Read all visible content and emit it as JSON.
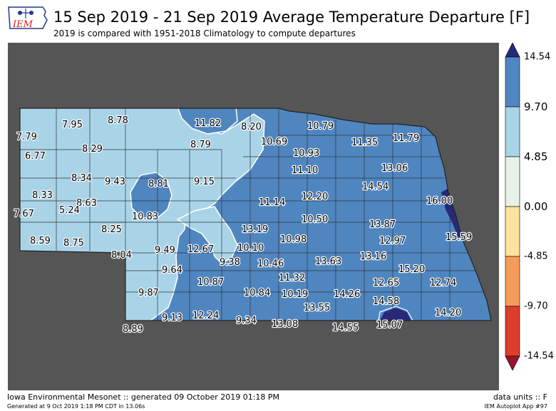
{
  "header": {
    "logo_text": "IEM",
    "title": "15 Sep 2019 - 21 Sep 2019 Average Temperature Departure [F]",
    "subtitle": "2019 is compared with 1951-2018 Climatology to compute departures"
  },
  "legend": {
    "ticks": [
      "14.54",
      "9.70",
      "4.85",
      "0.00",
      "-4.85",
      "-9.70",
      "-14.54"
    ],
    "colors": [
      "#28287a",
      "#4f86c0",
      "#a9d4e8",
      "#e7f3e6",
      "#fde39d",
      "#f59b5a",
      "#dd3d2d",
      "#9c1230"
    ]
  },
  "map": {
    "values": [
      {
        "label": "7.79"
      },
      {
        "label": "7.95"
      },
      {
        "label": "8.78"
      },
      {
        "label": "11.82"
      },
      {
        "label": "8.20"
      },
      {
        "label": "10.79"
      },
      {
        "label": "6.77"
      },
      {
        "label": "8.29"
      },
      {
        "label": "8.79"
      },
      {
        "label": "10.69"
      },
      {
        "label": "11.35"
      },
      {
        "label": "11.79"
      },
      {
        "label": "10.93"
      },
      {
        "label": "13.06"
      },
      {
        "label": "8.34"
      },
      {
        "label": "9.43"
      },
      {
        "label": "8.81"
      },
      {
        "label": "9.15"
      },
      {
        "label": "11.10"
      },
      {
        "label": "8.33"
      },
      {
        "label": "8.63"
      },
      {
        "label": "11.14"
      },
      {
        "label": "12.20"
      },
      {
        "label": "14.54"
      },
      {
        "label": "16.00"
      },
      {
        "label": "7.67"
      },
      {
        "label": "5.24"
      },
      {
        "label": "10.83"
      },
      {
        "label": "10.50"
      },
      {
        "label": "8.25"
      },
      {
        "label": "13.19"
      },
      {
        "label": "13.87"
      },
      {
        "label": "8.59"
      },
      {
        "label": "8.75"
      },
      {
        "label": "15.59"
      },
      {
        "label": "10.98"
      },
      {
        "label": "12.97"
      },
      {
        "label": "9.49"
      },
      {
        "label": "12.67"
      },
      {
        "label": "10.10"
      },
      {
        "label": "8.04"
      },
      {
        "label": "9.38"
      },
      {
        "label": "10.46"
      },
      {
        "label": "13.63"
      },
      {
        "label": "13.16"
      },
      {
        "label": "9.64"
      },
      {
        "label": "15.20"
      },
      {
        "label": "11.32"
      },
      {
        "label": "10.87"
      },
      {
        "label": "12.65"
      },
      {
        "label": "12.74"
      },
      {
        "label": "9.87"
      },
      {
        "label": "10.84"
      },
      {
        "label": "10.19"
      },
      {
        "label": "14.26"
      },
      {
        "label": "14.58"
      },
      {
        "label": "13.55"
      },
      {
        "label": "14.20"
      },
      {
        "label": "9.13"
      },
      {
        "label": "12.24"
      },
      {
        "label": "9.34"
      },
      {
        "label": "13.08"
      },
      {
        "label": "14.55"
      },
      {
        "label": "15.07"
      },
      {
        "label": "8.89"
      }
    ]
  },
  "footer": {
    "left": "Iowa Environmental Mesonet :: generated 09 October 2019 01:18 PM",
    "left_small": "Generated at 9 Oct 2019 1:18 PM CDT in 13.06s",
    "right": "data units :: F",
    "right_small": "IEM Autoplot App #97"
  }
}
